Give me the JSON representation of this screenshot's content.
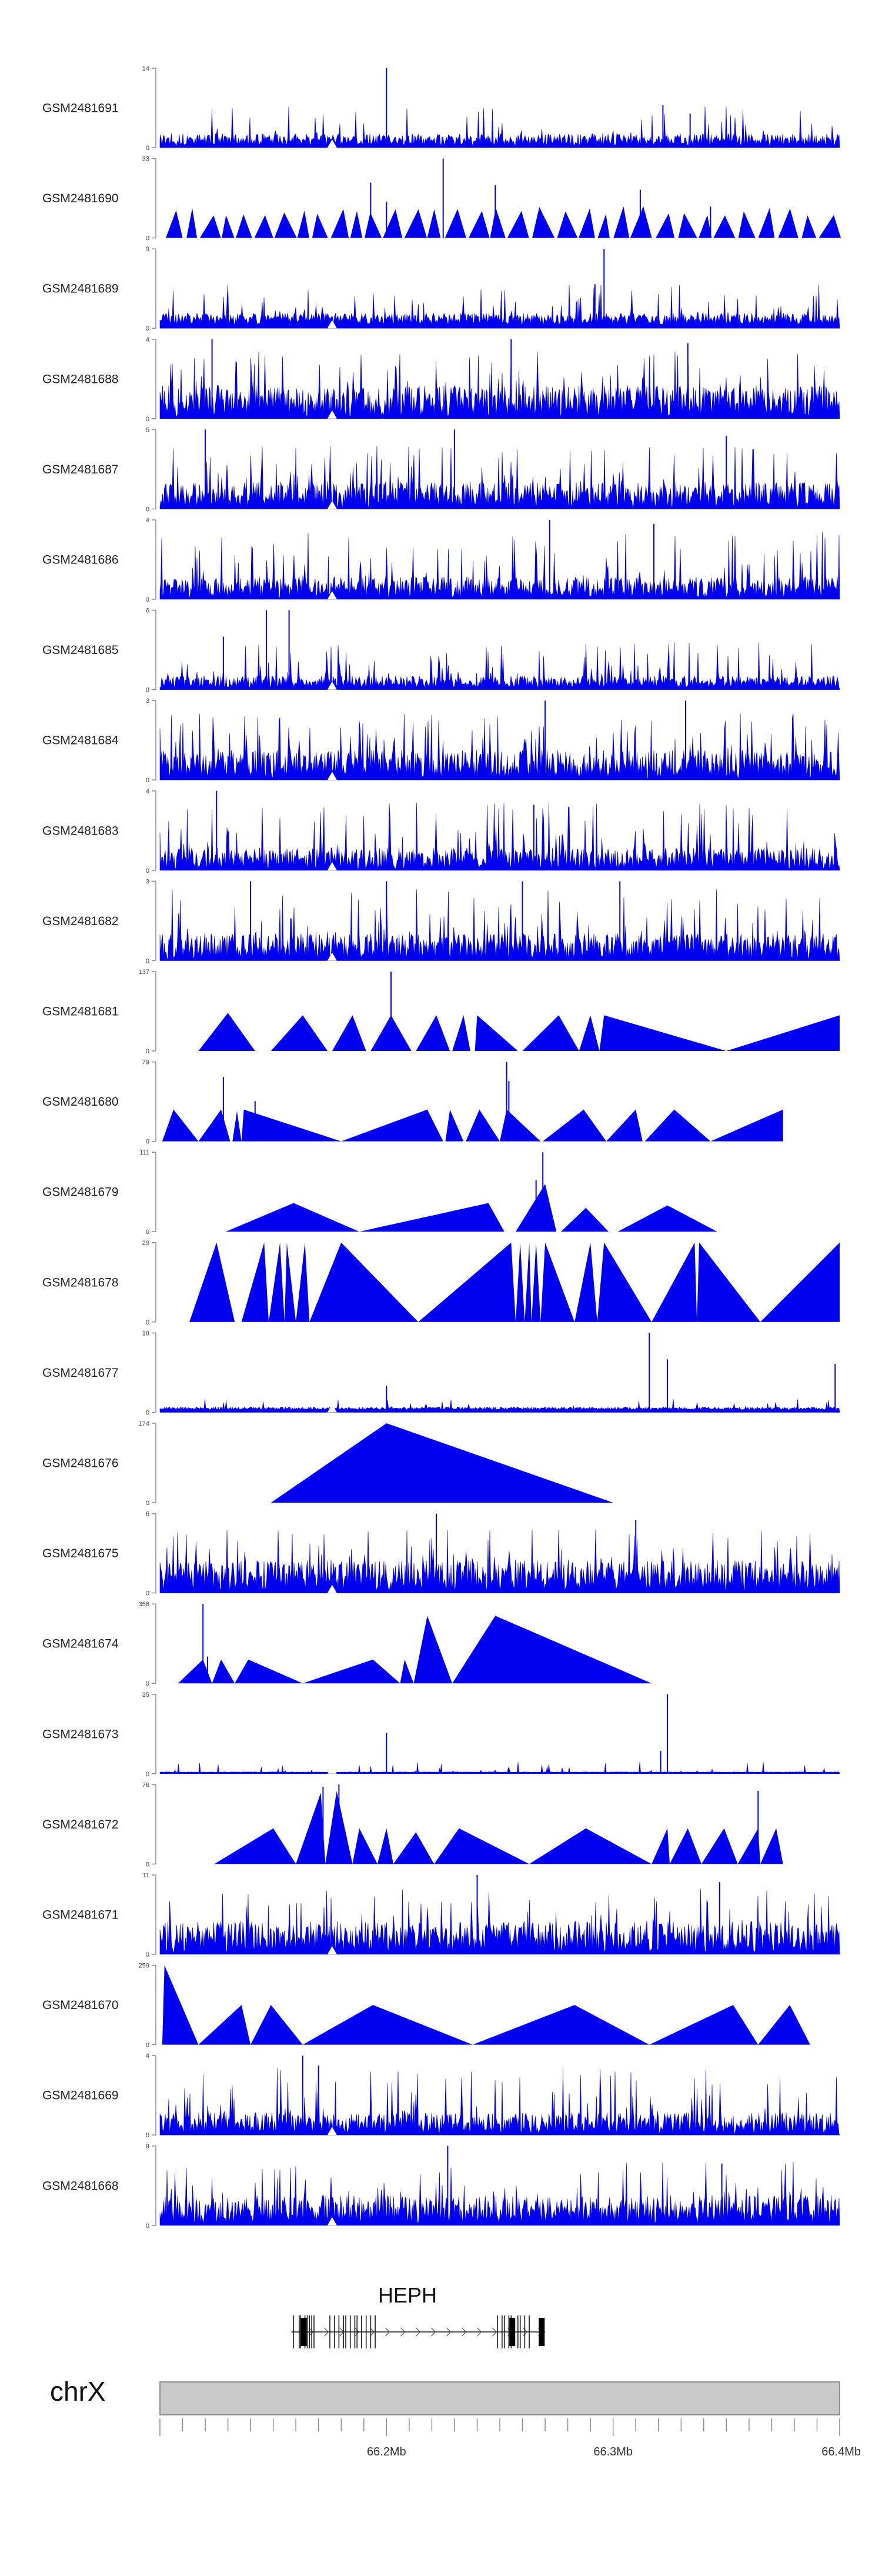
{
  "chart_data": {
    "type": "area",
    "title": "",
    "xlabel": "",
    "ylabel": "",
    "genome_region": {
      "chromosome": "chrX",
      "start_mb": 66.1,
      "end_mb": 66.4
    },
    "colors": {
      "coverage": "#0000ee",
      "axis": "#888888",
      "ideogram": "#c8c8c8",
      "gene": "#1a1a1a"
    },
    "x_ticks": [
      {
        "value": 66.2,
        "label": "66.2Mb"
      },
      {
        "value": 66.3,
        "label": "66.3Mb"
      },
      {
        "value": 66.4,
        "label": "66.4Mb"
      }
    ],
    "gene": {
      "name": "HEPH",
      "start_mb": 66.158,
      "end_mb": 66.27,
      "strand": "+",
      "exons_mb": [
        66.159,
        66.162,
        66.1615,
        66.164,
        66.165,
        66.166,
        66.167,
        66.168,
        66.175,
        66.177,
        66.179,
        66.181,
        66.182,
        66.184,
        66.186,
        66.187,
        66.189,
        66.191,
        66.193,
        66.195,
        66.249,
        66.251,
        66.252,
        66.254,
        66.255,
        66.258,
        66.259,
        66.261,
        66.263
      ],
      "big_exons_mb": [
        66.1635,
        66.2555,
        66.2685
      ]
    },
    "series": [
      {
        "name": "GSM2481691",
        "ymax": 14,
        "mode": "dense",
        "base": 0.1,
        "noise": 0.25,
        "spike_rate": 0.05,
        "spike_lo": 0.15,
        "spike_hi": 0.55,
        "peaks": [
          [
            66.2,
            14
          ],
          [
            66.322,
            7.5
          ],
          [
            66.334,
            6
          ]
        ]
      },
      {
        "name": "GSM2481690",
        "ymax": 33,
        "mode": "sawtooth",
        "tri_h_lo": 0.28,
        "tri_h_hi": 0.4,
        "tri_w_lo": 0.004,
        "tri_w_hi": 0.01,
        "gap_lo": 0.0,
        "gap_hi": 0.002,
        "peaks": [
          [
            66.193,
            23
          ],
          [
            66.2,
            15
          ],
          [
            66.225,
            33
          ],
          [
            66.248,
            22
          ],
          [
            66.312,
            20
          ],
          [
            66.343,
            13
          ]
        ]
      },
      {
        "name": "GSM2481689",
        "ymax": 9,
        "mode": "dense",
        "base": 0.12,
        "noise": 0.2,
        "spike_rate": 0.07,
        "spike_lo": 0.2,
        "spike_hi": 0.55,
        "peaks": [
          [
            66.296,
            9
          ],
          [
            66.292,
            5
          ]
        ]
      },
      {
        "name": "GSM2481688",
        "ymax": 4,
        "mode": "dense",
        "base": 0.22,
        "noise": 0.3,
        "spike_rate": 0.1,
        "spike_lo": 0.3,
        "spike_hi": 0.85,
        "peaks": [
          [
            66.123,
            4
          ],
          [
            66.255,
            4
          ],
          [
            66.333,
            3.8
          ]
        ]
      },
      {
        "name": "GSM2481687",
        "ymax": 5,
        "mode": "dense",
        "base": 0.18,
        "noise": 0.3,
        "spike_rate": 0.1,
        "spike_lo": 0.3,
        "spike_hi": 0.8,
        "peaks": [
          [
            66.12,
            5
          ],
          [
            66.23,
            5
          ],
          [
            66.35,
            4.6
          ]
        ]
      },
      {
        "name": "GSM2481686",
        "ymax": 4,
        "mode": "dense",
        "base": 0.15,
        "noise": 0.3,
        "spike_rate": 0.09,
        "spike_lo": 0.3,
        "spike_hi": 0.85,
        "peaks": [
          [
            66.272,
            4
          ],
          [
            66.318,
            3.8
          ]
        ]
      },
      {
        "name": "GSM2481685",
        "ymax": 6,
        "mode": "dense",
        "base": 0.1,
        "noise": 0.25,
        "spike_rate": 0.08,
        "spike_lo": 0.2,
        "spike_hi": 0.6,
        "peaks": [
          [
            66.147,
            6
          ],
          [
            66.157,
            6
          ],
          [
            66.128,
            4
          ]
        ]
      },
      {
        "name": "GSM2481684",
        "ymax": 3,
        "mode": "dense",
        "base": 0.2,
        "noise": 0.3,
        "spike_rate": 0.12,
        "spike_lo": 0.3,
        "spike_hi": 0.85,
        "peaks": [
          [
            66.27,
            3
          ],
          [
            66.332,
            3
          ]
        ]
      },
      {
        "name": "GSM2481683",
        "ymax": 4,
        "mode": "dense",
        "base": 0.15,
        "noise": 0.3,
        "spike_rate": 0.1,
        "spike_lo": 0.3,
        "spike_hi": 0.85,
        "peaks": [
          [
            66.125,
            4
          ],
          [
            66.265,
            3.3
          ]
        ]
      },
      {
        "name": "GSM2481682",
        "ymax": 3,
        "mode": "dense",
        "base": 0.18,
        "noise": 0.3,
        "spike_rate": 0.1,
        "spike_lo": 0.3,
        "spike_hi": 0.9,
        "peaks": [
          [
            66.14,
            3
          ],
          [
            66.2,
            3
          ],
          [
            66.26,
            3
          ],
          [
            66.303,
            3
          ]
        ]
      },
      {
        "name": "GSM2481681",
        "ymax": 137,
        "mode": "triangles",
        "triangles": [
          [
            66.117,
            66.13,
            66.142,
            0.48
          ],
          [
            66.149,
            66.163,
            66.174,
            0.45
          ],
          [
            66.176,
            66.185,
            66.191,
            0.45
          ],
          [
            66.193,
            66.202,
            66.211,
            0.45
          ],
          [
            66.213,
            66.222,
            66.228,
            0.45
          ],
          [
            66.229,
            66.234,
            66.237,
            0.45
          ],
          [
            66.239,
            66.24,
            66.258,
            0.45
          ],
          [
            66.26,
            66.276,
            66.285,
            0.45
          ],
          [
            66.285,
            66.29,
            66.294,
            0.45
          ],
          [
            66.294,
            66.296,
            66.35,
            0.45
          ],
          [
            66.35,
            66.4,
            66.4,
            0.45
          ]
        ],
        "peaks": [
          [
            66.202,
            137
          ]
        ]
      },
      {
        "name": "GSM2481680",
        "ymax": 79,
        "mode": "triangles",
        "triangles": [
          [
            66.101,
            66.106,
            66.117,
            0.4
          ],
          [
            66.117,
            66.127,
            66.131,
            0.4
          ],
          [
            66.132,
            66.134,
            66.136,
            0.38
          ],
          [
            66.136,
            66.137,
            66.18,
            0.4
          ],
          [
            66.18,
            66.218,
            66.225,
            0.4
          ],
          [
            66.226,
            66.228,
            66.234,
            0.4
          ],
          [
            66.235,
            66.241,
            66.25,
            0.4
          ],
          [
            66.25,
            66.253,
            66.268,
            0.4
          ],
          [
            66.269,
            66.287,
            66.297,
            0.4
          ],
          [
            66.297,
            66.31,
            66.313,
            0.4
          ],
          [
            66.314,
            66.327,
            66.343,
            0.4
          ],
          [
            66.343,
            66.375,
            66.375,
            0.4
          ]
        ],
        "peaks": [
          [
            66.128,
            64
          ],
          [
            66.142,
            40
          ],
          [
            66.253,
            79
          ],
          [
            66.254,
            60
          ]
        ]
      },
      {
        "name": "GSM2481679",
        "ymax": 111,
        "mode": "triangles",
        "triangles": [
          [
            66.129,
            66.159,
            66.188,
            0.36
          ],
          [
            66.188,
            66.245,
            66.252,
            0.36
          ],
          [
            66.257,
            66.27,
            66.275,
            0.6
          ],
          [
            66.277,
            66.288,
            66.298,
            0.3
          ],
          [
            66.302,
            66.324,
            66.346,
            0.33
          ]
        ],
        "peaks": [
          [
            66.269,
            111
          ],
          [
            66.266,
            72
          ]
        ]
      },
      {
        "name": "GSM2481678",
        "ymax": 29,
        "mode": "triangles",
        "triangles": [
          [
            66.113,
            66.125,
            66.133,
            1.0
          ],
          [
            66.136,
            66.146,
            66.148,
            1.0
          ],
          [
            66.148,
            66.153,
            66.155,
            1.0
          ],
          [
            66.155,
            66.156,
            66.16,
            1.0
          ],
          [
            66.16,
            66.164,
            66.166,
            1.0
          ],
          [
            66.166,
            66.18,
            66.214,
            1.0
          ],
          [
            66.214,
            66.255,
            66.257,
            1.0
          ],
          [
            66.257,
            66.259,
            66.261,
            1.0
          ],
          [
            66.261,
            66.263,
            66.264,
            1.0
          ],
          [
            66.264,
            66.266,
            66.268,
            1.0
          ],
          [
            66.268,
            66.27,
            66.283,
            1.0
          ],
          [
            66.283,
            66.29,
            66.293,
            1.0
          ],
          [
            66.293,
            66.296,
            66.317,
            1.0
          ],
          [
            66.317,
            66.336,
            66.337,
            1.0
          ],
          [
            66.337,
            66.338,
            66.365,
            1.0
          ],
          [
            66.365,
            66.4,
            66.4,
            1.0
          ]
        ],
        "peaks": []
      },
      {
        "name": "GSM2481677",
        "ymax": 18,
        "mode": "dense",
        "base": 0.05,
        "noise": 0.12,
        "spike_rate": 0.03,
        "spike_lo": 0.05,
        "spike_hi": 0.2,
        "peaks": [
          [
            66.316,
            18
          ],
          [
            66.324,
            12
          ],
          [
            66.398,
            11
          ],
          [
            66.2,
            6
          ]
        ]
      },
      {
        "name": "GSM2481676",
        "ymax": 174,
        "mode": "triangles",
        "triangles": [
          [
            66.149,
            66.2,
            66.3,
            1.0
          ]
        ],
        "peaks": []
      },
      {
        "name": "GSM2481675",
        "ymax": 6,
        "mode": "dense",
        "base": 0.22,
        "noise": 0.3,
        "spike_rate": 0.1,
        "spike_lo": 0.3,
        "spike_hi": 0.8,
        "peaks": [
          [
            66.222,
            6
          ],
          [
            66.31,
            5.5
          ]
        ]
      },
      {
        "name": "GSM2481674",
        "ymax": 356,
        "mode": "triangles",
        "triangles": [
          [
            66.108,
            66.119,
            66.123,
            0.3
          ],
          [
            66.123,
            66.127,
            66.133,
            0.3
          ],
          [
            66.133,
            66.139,
            66.163,
            0.3
          ],
          [
            66.163,
            66.194,
            66.206,
            0.3
          ],
          [
            66.206,
            66.208,
            66.212,
            0.3
          ],
          [
            66.212,
            66.218,
            66.229,
            0.85
          ],
          [
            66.229,
            66.248,
            66.317,
            0.85
          ]
        ],
        "peaks": [
          [
            66.119,
            356
          ],
          [
            66.121,
            120
          ]
        ]
      },
      {
        "name": "GSM2481673",
        "ymax": 35,
        "mode": "dense",
        "base": 0.02,
        "noise": 0.05,
        "spike_rate": 0.05,
        "spike_lo": 0.03,
        "spike_hi": 0.15,
        "peaks": [
          [
            66.324,
            35
          ],
          [
            66.321,
            10
          ],
          [
            66.2,
            18
          ]
        ]
      },
      {
        "name": "GSM2481672",
        "ymax": 76,
        "mode": "triangles",
        "triangles": [
          [
            66.124,
            66.15,
            66.16,
            0.45
          ],
          [
            66.16,
            66.171,
            66.173,
            0.9
          ],
          [
            66.173,
            66.178,
            66.185,
            0.92
          ],
          [
            66.185,
            66.188,
            66.196,
            0.45
          ],
          [
            66.196,
            66.2,
            66.203,
            0.45
          ],
          [
            66.203,
            66.213,
            66.221,
            0.4
          ],
          [
            66.221,
            66.232,
            66.263,
            0.45
          ],
          [
            66.263,
            66.288,
            66.317,
            0.45
          ],
          [
            66.317,
            66.324,
            66.325,
            0.45
          ],
          [
            66.325,
            66.333,
            66.339,
            0.45
          ],
          [
            66.339,
            66.349,
            66.355,
            0.45
          ],
          [
            66.355,
            66.364,
            66.365,
            0.45
          ],
          [
            66.365,
            66.372,
            66.375,
            0.45
          ]
        ],
        "peaks": [
          [
            66.172,
            74
          ],
          [
            66.179,
            76
          ],
          [
            66.364,
            70
          ]
        ]
      },
      {
        "name": "GSM2481671",
        "ymax": 11,
        "mode": "dense",
        "base": 0.22,
        "noise": 0.3,
        "spike_rate": 0.08,
        "spike_lo": 0.3,
        "spike_hi": 0.85,
        "peaks": [
          [
            66.24,
            11
          ],
          [
            66.347,
            10
          ]
        ]
      },
      {
        "name": "GSM2481670",
        "ymax": 259,
        "mode": "triangles",
        "triangles": [
          [
            66.101,
            66.102,
            66.117,
            1.0
          ],
          [
            66.117,
            66.136,
            66.14,
            0.5
          ],
          [
            66.14,
            66.149,
            66.163,
            0.5
          ],
          [
            66.163,
            66.194,
            66.238,
            0.5
          ],
          [
            66.238,
            66.283,
            66.316,
            0.5
          ],
          [
            66.316,
            66.353,
            66.364,
            0.5
          ],
          [
            66.364,
            66.378,
            66.387,
            0.5
          ]
        ],
        "peaks": []
      },
      {
        "name": "GSM2481669",
        "ymax": 4,
        "mode": "dense",
        "base": 0.15,
        "noise": 0.3,
        "spike_rate": 0.1,
        "spike_lo": 0.3,
        "spike_hi": 0.85,
        "peaks": [
          [
            66.163,
            4
          ],
          [
            66.17,
            3.5
          ]
        ]
      },
      {
        "name": "GSM2481668",
        "ymax": 9,
        "mode": "dense",
        "base": 0.2,
        "noise": 0.3,
        "spike_rate": 0.1,
        "spike_lo": 0.3,
        "spike_hi": 0.8,
        "peaks": [
          [
            66.227,
            9
          ],
          [
            66.348,
            7
          ]
        ]
      }
    ]
  }
}
